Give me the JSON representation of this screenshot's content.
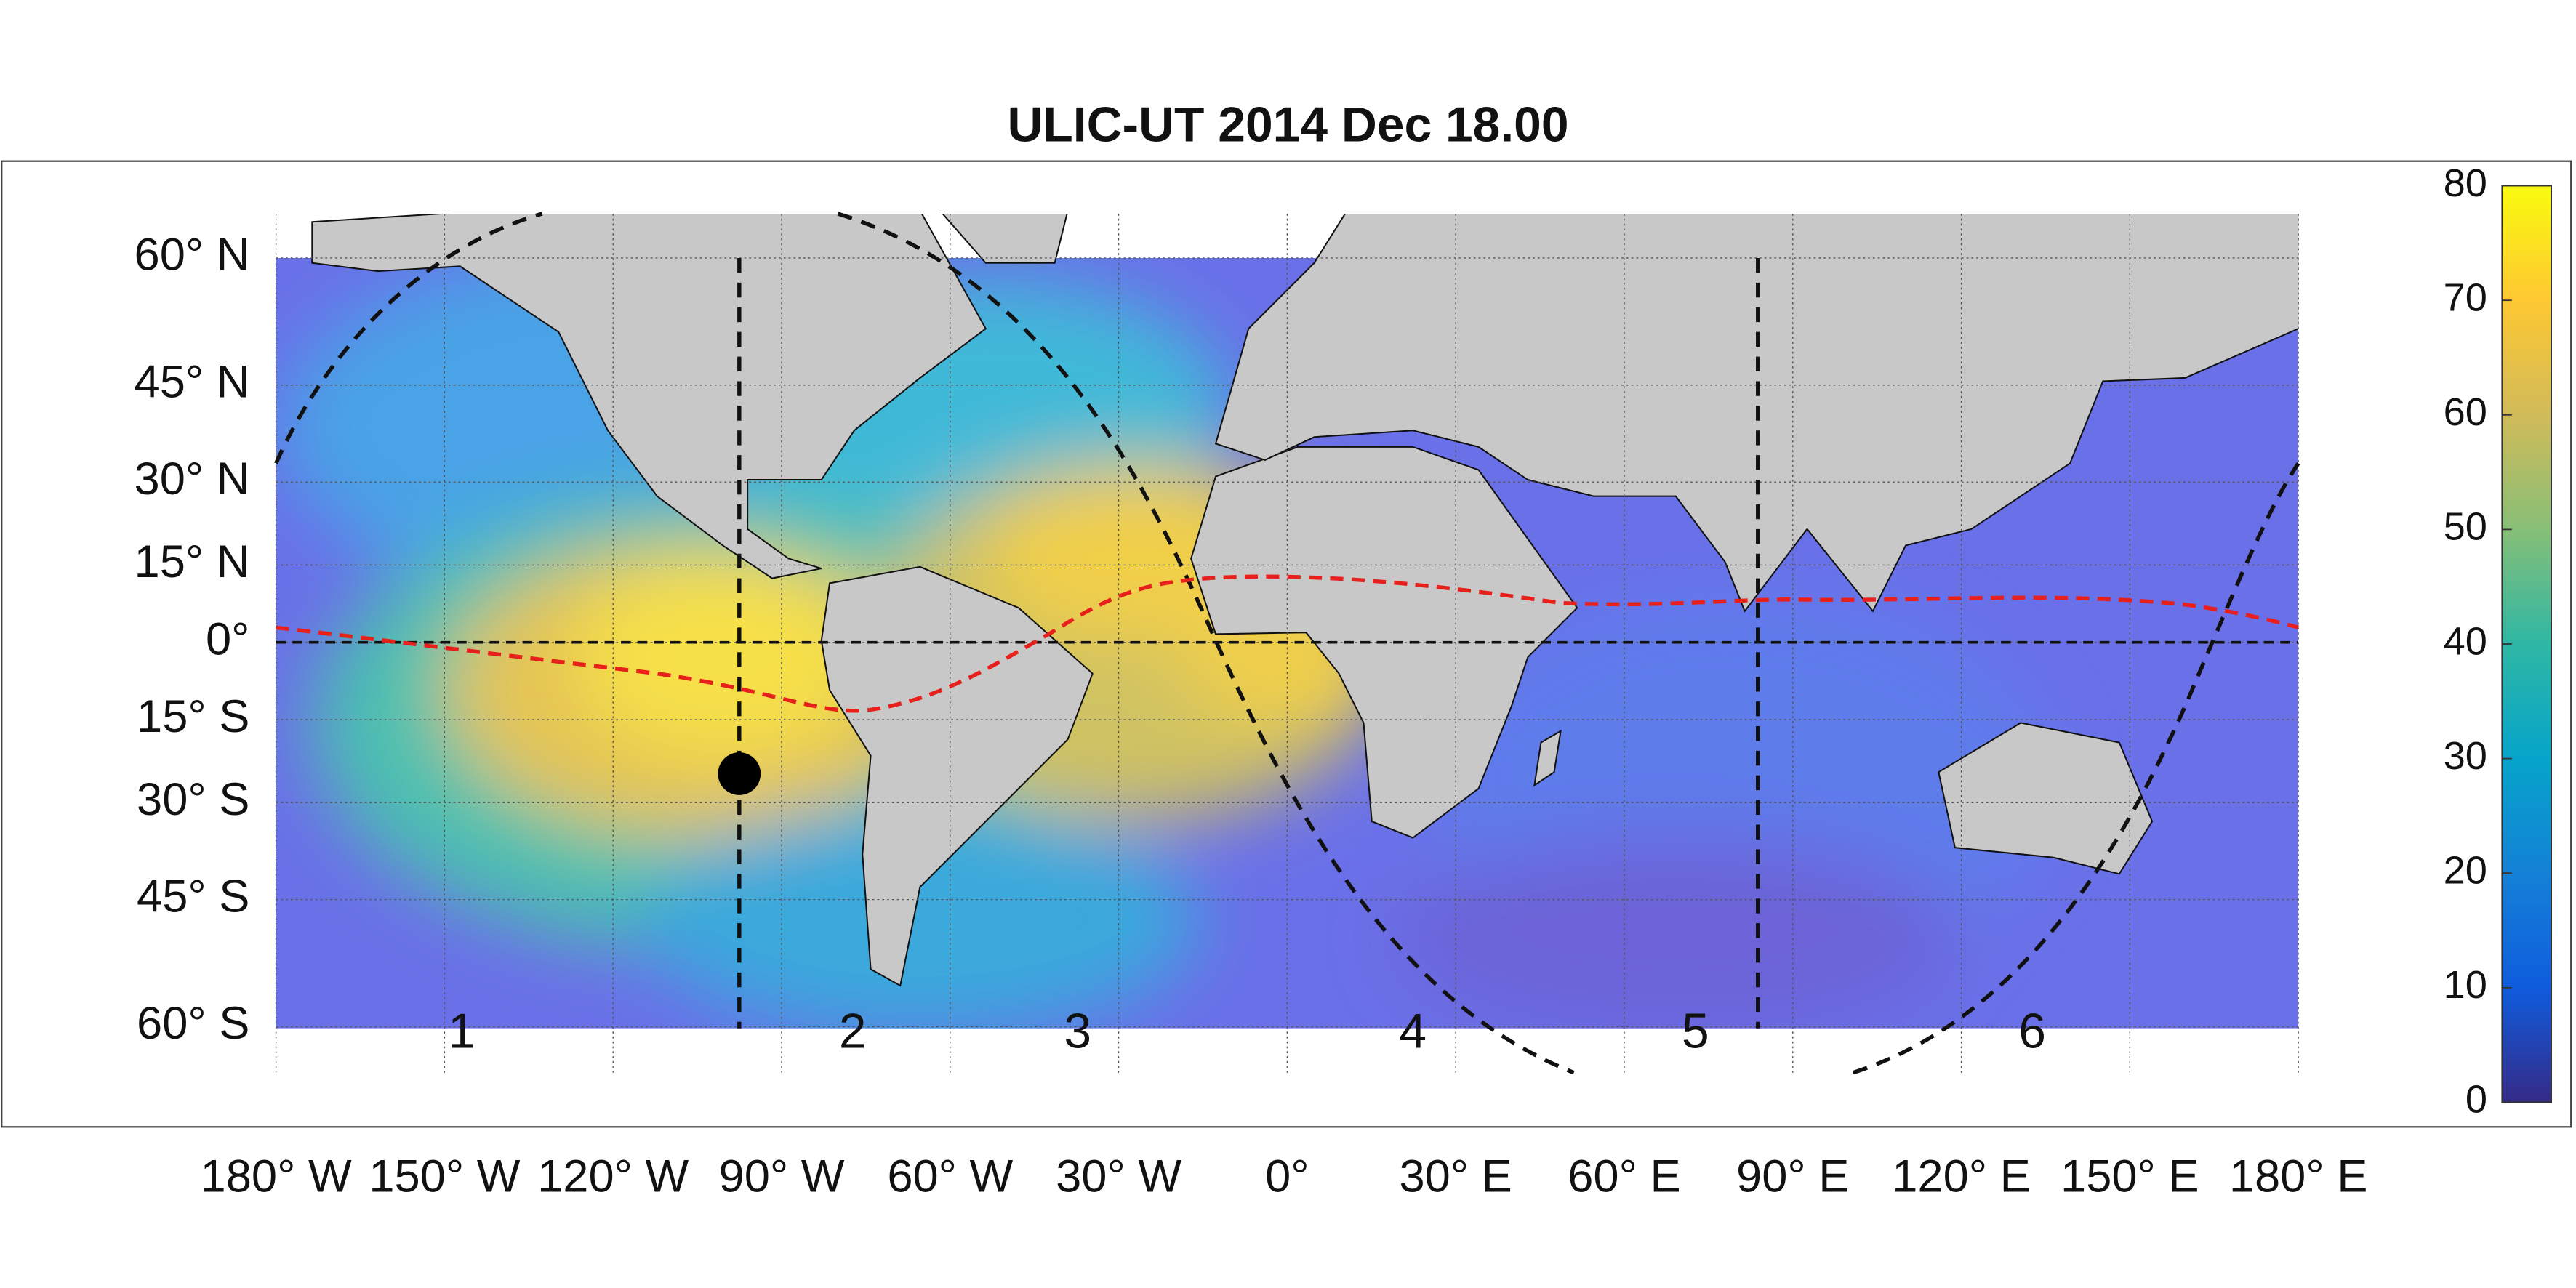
{
  "title": "ULIC-UT 2014 Dec 18.00",
  "lat_ticks": [
    {
      "value": 60,
      "label": "60° N"
    },
    {
      "value": 45,
      "label": "45° N"
    },
    {
      "value": 30,
      "label": "30° N"
    },
    {
      "value": 15,
      "label": "15° N"
    },
    {
      "value": 0,
      "label": "0°"
    },
    {
      "value": -15,
      "label": "15° S"
    },
    {
      "value": -30,
      "label": "30° S"
    },
    {
      "value": -45,
      "label": "45° S"
    },
    {
      "value": -60,
      "label": "60° S"
    }
  ],
  "lon_ticks": [
    {
      "value": -180,
      "label": "180° W"
    },
    {
      "value": -150,
      "label": "150° W"
    },
    {
      "value": -120,
      "label": "120° W"
    },
    {
      "value": -90,
      "label": "90° W"
    },
    {
      "value": -60,
      "label": "60° W"
    },
    {
      "value": -30,
      "label": "30° W"
    },
    {
      "value": 0,
      "label": "0°"
    },
    {
      "value": 30,
      "label": "30° E"
    },
    {
      "value": 60,
      "label": "60° E"
    },
    {
      "value": 90,
      "label": "90° E"
    },
    {
      "value": 120,
      "label": "120° E"
    },
    {
      "value": 150,
      "label": "150° E"
    },
    {
      "value": 180,
      "label": "180° E"
    }
  ],
  "colorbar": {
    "lim": [
      0,
      80
    ],
    "ticks": [
      0,
      10,
      20,
      30,
      40,
      50,
      60,
      70,
      80
    ]
  },
  "regions": [
    "1",
    "2",
    "3",
    "4",
    "5",
    "6"
  ]
}
